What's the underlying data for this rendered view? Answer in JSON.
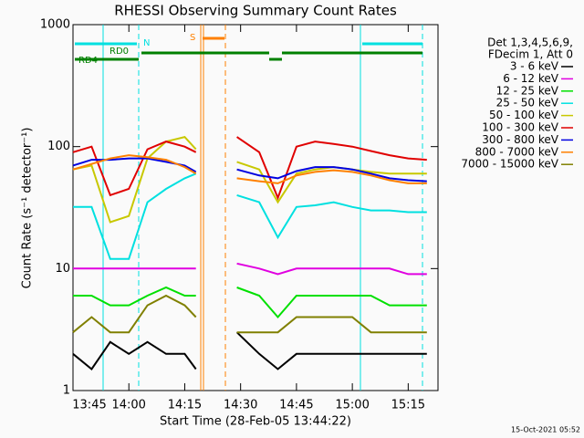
{
  "chart_data": {
    "type": "line",
    "title": "RHESSI Observing Summary Count Rates",
    "x_label": "Start Time (28-Feb-05 13:44:22)",
    "y_label": "Count Rate (s⁻¹ detector⁻¹)",
    "footer": "15-Oct-2021 05:52",
    "legend_header": [
      "Det 1,3,4,5,6,9,",
      "FDecim 1, Att 0"
    ],
    "legend": "right",
    "log_y": true,
    "annotations": [
      "N",
      "RD0",
      "RD4",
      "S"
    ],
    "x": [
      "13:45",
      "13:50",
      "13:55",
      "14:00",
      "14:05",
      "14:10",
      "14:15",
      "14:18",
      "14:22",
      "14:26",
      "14:29",
      "14:35",
      "14:40",
      "14:45",
      "14:50",
      "14:55",
      "15:00",
      "15:05",
      "15:10",
      "15:15",
      "15:20"
    ],
    "xlim": [
      "13:45",
      "15:23"
    ],
    "xticks": [
      "13:45",
      "14:00",
      "14:15",
      "14:30",
      "14:45",
      "15:00",
      "15:15"
    ],
    "ylim": [
      1,
      1000
    ],
    "yticks": [
      1,
      10,
      100,
      1000
    ],
    "series": [
      {
        "name": "3 - 6 keV",
        "color": "#000000",
        "values": [
          2,
          1.5,
          2.5,
          2,
          2.5,
          2,
          2,
          1.5,
          null,
          null,
          3,
          2,
          1.5,
          2,
          2,
          2,
          2,
          2,
          2,
          2,
          2
        ]
      },
      {
        "name": "6 - 12 keV",
        "color": "#e000e0",
        "values": [
          10,
          10,
          10,
          10,
          10,
          10,
          10,
          10,
          null,
          null,
          11,
          10,
          9,
          10,
          10,
          10,
          10,
          10,
          10,
          9,
          9
        ]
      },
      {
        "name": "12 - 25 keV",
        "color": "#00e000",
        "values": [
          6,
          6,
          5,
          5,
          6,
          7,
          6,
          6,
          null,
          null,
          7,
          6,
          4,
          6,
          6,
          6,
          6,
          6,
          5,
          5,
          5
        ]
      },
      {
        "name": "25 - 50 keV",
        "color": "#00e0e0",
        "values": [
          32,
          32,
          12,
          12,
          35,
          45,
          55,
          60,
          null,
          null,
          40,
          35,
          18,
          32,
          33,
          35,
          32,
          30,
          30,
          29,
          29
        ]
      },
      {
        "name": "50 - 100 keV",
        "color": "#c8c800",
        "values": [
          65,
          70,
          24,
          27,
          80,
          110,
          120,
          95,
          null,
          null,
          75,
          65,
          35,
          60,
          65,
          68,
          65,
          62,
          60,
          60,
          60
        ]
      },
      {
        "name": "100 - 300 keV",
        "color": "#e00000",
        "values": [
          90,
          100,
          40,
          45,
          95,
          110,
          100,
          90,
          null,
          null,
          120,
          90,
          38,
          100,
          110,
          105,
          100,
          92,
          85,
          80,
          78
        ]
      },
      {
        "name": "300 - 800 keV",
        "color": "#0000e0",
        "values": [
          70,
          78,
          78,
          80,
          80,
          75,
          70,
          62,
          null,
          null,
          65,
          58,
          55,
          63,
          68,
          68,
          65,
          60,
          55,
          53,
          52
        ]
      },
      {
        "name": "800 - 7000 keV",
        "color": "#ff8000",
        "values": [
          65,
          72,
          80,
          85,
          82,
          78,
          68,
          60,
          null,
          null,
          55,
          52,
          50,
          58,
          62,
          64,
          62,
          58,
          53,
          50,
          50
        ]
      },
      {
        "name": "7000 - 15000 keV",
        "color": "#808000",
        "values": [
          3,
          4,
          3,
          3,
          5,
          6,
          5,
          4,
          null,
          null,
          3,
          3,
          3,
          4,
          4,
          4,
          4,
          3,
          3,
          3,
          3
        ]
      }
    ]
  }
}
